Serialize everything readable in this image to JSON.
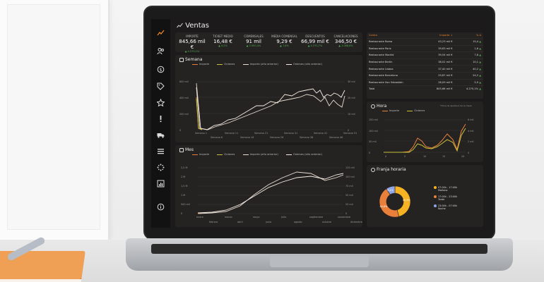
{
  "page_title": "Ventas",
  "kpis": [
    {
      "label": "IMPORTE",
      "value": "845,66 mil €",
      "delta": "▲ 4.270,1%"
    },
    {
      "label": "TICKET MEDIO",
      "value": "16,48 €",
      "delta": "▲ 9,2%"
    },
    {
      "label": "COMENSALES",
      "value": "91 mil",
      "delta": "▲ 3.950,4%"
    },
    {
      "label": "MEDIA COMENSAL",
      "value": "9,29 €",
      "delta": "▲ 7,6%"
    },
    {
      "label": "DESCUENTOS",
      "value": "66,99 mil €",
      "delta": "▲ 4.370,7%"
    },
    {
      "label": "CANCELACIONES",
      "value": "346,50 €",
      "delta": "▲ 1.068,6%"
    }
  ],
  "semana": {
    "title": "Semana",
    "legend": [
      "Importe",
      "Órdenes",
      "Importe (año anterior)",
      "Órdenes (año anterior)"
    ],
    "y_left": [
      "600 mil",
      "400 mil",
      "200 mil",
      "0"
    ],
    "y_right": [
      "30 mil",
      "20 mil",
      "10 mil",
      "0"
    ],
    "x_top": [
      "Semana 1",
      "Semana 11",
      "Semana 21",
      "Semana 31",
      "Semana 41",
      "Semana 51"
    ],
    "x_bottom": [
      "Semana 6",
      "Semana 16",
      "Semana 26",
      "Semana 36",
      "Semana 46"
    ]
  },
  "mes": {
    "title": "Mes",
    "legend": [
      "Importe",
      "Órdenes",
      "Importe (año anterior)",
      "Órdenes (año anterior)"
    ],
    "y_left": [
      "2,5 M",
      "2 M",
      "1,5 M",
      "1 M",
      "500 mil",
      "0"
    ],
    "y_right": [
      "125 mil",
      "100 mil",
      "75 mil",
      "50 mil",
      "25 mil",
      "0"
    ],
    "x_top": [
      "enero",
      "marzo",
      "mayo",
      "julio",
      "septiembre",
      "noviembre"
    ],
    "x_bottom": [
      "febrero",
      "abril",
      "junio",
      "agosto",
      "octubre",
      "diciembre"
    ]
  },
  "centros": {
    "headers": [
      "Centro",
      "Importe ↓",
      "% Δ"
    ],
    "rows": [
      [
        "Restaurante Roma",
        "43,23 mil €",
        "15,4",
        "up"
      ],
      [
        "Restaurante Paris",
        "39,63 mil €",
        "1,6",
        "up"
      ],
      [
        "Restaurante Madrid",
        "39,54 mil €",
        "7,8",
        "up"
      ],
      [
        "Restaurante Berlin",
        "38,02 mil €",
        "10,1",
        "up"
      ],
      [
        "Restaurante Lisboa",
        "37,40 mil €",
        "40,2",
        "up"
      ],
      [
        "Restaurante Barcelona",
        "29,87 mil €",
        "24,2",
        "up"
      ],
      [
        "Restaurante San Sebastián",
        "28,09 mil €",
        "5,9",
        "up"
      ],
      [
        "Total",
        "845,66 mil €",
        "4.270,1%",
        "up"
      ]
    ]
  },
  "hora": {
    "title": "Hora",
    "note": "*Hora de apertura de la mesa",
    "legend": [
      "Importe",
      "Órdenes"
    ],
    "y_left": [
      "150 mil",
      "100 mil",
      "50 mil",
      "0"
    ],
    "y_right": [
      "6 mil",
      "4 mil",
      "2 mil",
      "0"
    ],
    "x": [
      "0",
      "5",
      "10",
      "15",
      "20"
    ]
  },
  "franja": {
    "title": "Franja horaria",
    "slices": [
      {
        "label": "07:00h - 17:00h",
        "sub": "Mañana",
        "pct": "45,9%",
        "value": 45.9,
        "color": "#f5b324"
      },
      {
        "label": "17:00h - 23:00h",
        "sub": "Tarde",
        "pct": "44,8%",
        "value": 44.8,
        "color": "#e8803c"
      },
      {
        "label": "23:00h - 07:00h",
        "sub": "Noche",
        "pct": "9,4%",
        "value": 9.4,
        "color": "#8ea6e6"
      }
    ]
  },
  "colors": {
    "accent": "#e8832a",
    "series_importe": "#e8803c",
    "series_ordenes": "#c9c23a",
    "series_prev": "#e8ddd0"
  }
}
